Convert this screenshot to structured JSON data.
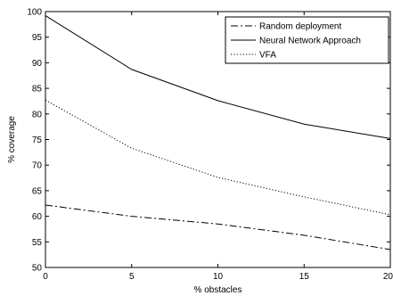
{
  "chart_data": {
    "type": "line",
    "title": "",
    "xlabel": "% obstacles",
    "ylabel": "% coverage",
    "xlim": [
      0,
      20
    ],
    "ylim": [
      50,
      100
    ],
    "x": [
      0,
      5,
      10,
      15,
      20
    ],
    "xticks": [
      "0",
      "5",
      "10",
      "15",
      "20"
    ],
    "yticks": [
      "50",
      "55",
      "60",
      "65",
      "70",
      "75",
      "80",
      "85",
      "90",
      "95",
      "100"
    ],
    "grid": false,
    "legend_position": "top-right",
    "series": [
      {
        "name": "Random deployment",
        "style": "dash-dot",
        "values": [
          62.2,
          60.0,
          58.5,
          56.3,
          53.5
        ]
      },
      {
        "name": "Neural Network Approach",
        "style": "solid",
        "values": [
          99.2,
          88.7,
          82.6,
          78.0,
          75.2
        ]
      },
      {
        "name": "VFA",
        "style": "dotted",
        "values": [
          82.7,
          73.3,
          67.6,
          63.8,
          60.3
        ]
      }
    ]
  }
}
